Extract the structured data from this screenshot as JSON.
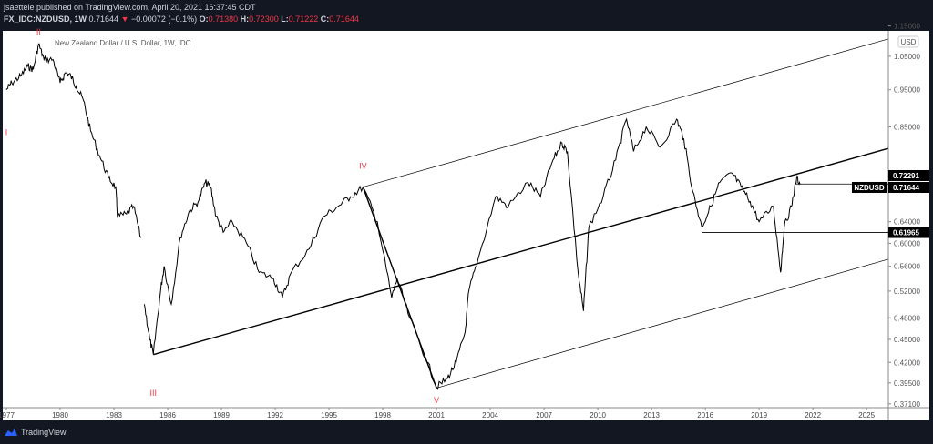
{
  "header": {
    "publisher": "jsaettele published on TradingView.com, April 20, 2021 16:37:45 CDT",
    "symbol": "FX_IDC:NZDUSD, 1W",
    "last": "0.71644",
    "change": "−0.00072 (−0.1%)",
    "open_label": "O:",
    "open": "0.71380",
    "high_label": "H:",
    "high": "0.72300",
    "low_label": "L:",
    "low": "0.71222",
    "close_label": "C:",
    "close": "0.71644"
  },
  "footer": {
    "brand": "TradingView",
    "icon": "tradingview-cloud-icon"
  },
  "chart_data": {
    "type": "line",
    "title": "New Zealand Dollar / U.S. Dollar, 1W, IDC",
    "currency_badge": "USD",
    "y_scale": "log",
    "ylim": [
      0.371,
      1.15
    ],
    "xlim": [
      1977,
      2026.3
    ],
    "x_ticks": [
      "1977",
      "1980",
      "1983",
      "1986",
      "1989",
      "1992",
      "1995",
      "1998",
      "2001",
      "2004",
      "2007",
      "2010",
      "2013",
      "2016",
      "2019",
      "2022",
      "2025"
    ],
    "y_ticks": [
      "1.15000",
      "1.05000",
      "0.95000",
      "0.85000",
      "0.64000",
      "0.60000",
      "0.56000",
      "0.52000",
      "0.48000",
      "0.45000",
      "0.42000",
      "0.39500",
      "0.37100"
    ],
    "colors": {
      "price": "#000000",
      "wave_label": "#f23645",
      "tag": "#000000"
    },
    "series": [
      {
        "values": [
          [
            1977.0,
            0.95
          ],
          [
            1977.3,
            0.97
          ],
          [
            1977.8,
            0.99
          ],
          [
            1978.2,
            1.02
          ],
          [
            1978.5,
            1.01
          ],
          [
            1978.8,
            1.09
          ],
          [
            1979.1,
            1.04
          ],
          [
            1979.6,
            1.04
          ],
          [
            1980.0,
            0.97
          ],
          [
            1980.3,
            1.0
          ],
          [
            1980.6,
            0.99
          ],
          [
            1980.9,
            0.96
          ],
          [
            1981.3,
            0.92
          ],
          [
            1981.7,
            0.84
          ],
          [
            1982.2,
            0.78
          ],
          [
            1982.7,
            0.73
          ],
          [
            1983.1,
            0.71
          ],
          [
            1983.2,
            0.65
          ],
          [
            1983.7,
            0.655
          ],
          [
            1984.1,
            0.67
          ],
          [
            1984.5,
            0.61
          ],
          [
            1984.7,
            0.5
          ],
          [
            1985.0,
            0.45
          ],
          [
            1985.2,
            0.43
          ],
          [
            1985.6,
            0.52
          ],
          [
            1985.8,
            0.56
          ],
          [
            1986.2,
            0.5
          ],
          [
            1986.7,
            0.61
          ],
          [
            1987.2,
            0.66
          ],
          [
            1987.7,
            0.68
          ],
          [
            1988.1,
            0.72
          ],
          [
            1988.4,
            0.71
          ],
          [
            1988.7,
            0.65
          ],
          [
            1989.1,
            0.62
          ],
          [
            1989.6,
            0.64
          ],
          [
            1990.4,
            0.6
          ],
          [
            1991.1,
            0.55
          ],
          [
            1991.9,
            0.54
          ],
          [
            1992.4,
            0.51
          ],
          [
            1992.9,
            0.55
          ],
          [
            1993.9,
            0.59
          ],
          [
            1994.7,
            0.65
          ],
          [
            1995.5,
            0.67
          ],
          [
            1996.2,
            0.69
          ],
          [
            1996.9,
            0.71
          ],
          [
            1997.7,
            0.64
          ],
          [
            1998.5,
            0.51
          ],
          [
            1998.8,
            0.54
          ],
          [
            1999.5,
            0.48
          ],
          [
            2000.5,
            0.42
          ],
          [
            2001.0,
            0.39
          ],
          [
            2001.6,
            0.4
          ],
          [
            2002.1,
            0.42
          ],
          [
            2002.6,
            0.46
          ],
          [
            2002.8,
            0.52
          ],
          [
            2003.3,
            0.57
          ],
          [
            2004.3,
            0.69
          ],
          [
            2005.0,
            0.67
          ],
          [
            2006.1,
            0.72
          ],
          [
            2006.8,
            0.69
          ],
          [
            2007.5,
            0.77
          ],
          [
            2008.0,
            0.81
          ],
          [
            2008.3,
            0.79
          ],
          [
            2008.9,
            0.55
          ],
          [
            2009.2,
            0.49
          ],
          [
            2009.5,
            0.63
          ],
          [
            2010.3,
            0.69
          ],
          [
            2011.0,
            0.77
          ],
          [
            2011.6,
            0.87
          ],
          [
            2012.0,
            0.79
          ],
          [
            2012.7,
            0.85
          ],
          [
            2013.5,
            0.8
          ],
          [
            2014.4,
            0.87
          ],
          [
            2014.8,
            0.82
          ],
          [
            2015.3,
            0.7
          ],
          [
            2015.8,
            0.63
          ],
          [
            2016.3,
            0.67
          ],
          [
            2016.8,
            0.72
          ],
          [
            2017.5,
            0.74
          ],
          [
            2018.0,
            0.71
          ],
          [
            2018.5,
            0.68
          ],
          [
            2019.0,
            0.64
          ],
          [
            2019.8,
            0.67
          ],
          [
            2020.2,
            0.55
          ],
          [
            2020.4,
            0.63
          ],
          [
            2020.8,
            0.67
          ],
          [
            2021.1,
            0.73
          ],
          [
            2021.3,
            0.716
          ]
        ]
      }
    ],
    "trendlines": [
      {
        "from": [
          1996.9,
          0.71
        ],
        "to": [
          2026.2,
          1.106
        ]
      },
      {
        "from": [
          1985.2,
          0.43
        ],
        "to": [
          2026.2,
          0.797
        ]
      },
      {
        "from": [
          1996.9,
          0.71
        ],
        "to": [
          2001.0,
          0.389
        ]
      },
      {
        "from": [
          2001.0,
          0.389
        ],
        "to": [
          2026.2,
          0.572
        ]
      }
    ],
    "horizontal_levels": [
      {
        "from": 2021.0,
        "value": 0.71644
      },
      {
        "from": 2015.8,
        "value": 0.61965
      }
    ],
    "price_tags": [
      {
        "label": "",
        "value": "0.72291"
      },
      {
        "label": "NZDUSD",
        "value": "0.71644"
      },
      {
        "label": "",
        "value": "0.61965"
      }
    ],
    "wave_labels": [
      {
        "text": "I",
        "x": 1977.0,
        "y": 0.83
      },
      {
        "text": "II",
        "x": 1978.8,
        "y": 1.15
      },
      {
        "text": "III",
        "x": 1985.2,
        "y": 0.38
      },
      {
        "text": "IV",
        "x": 1996.9,
        "y": 0.75
      },
      {
        "text": "V",
        "x": 2001.0,
        "y": 0.372
      }
    ]
  }
}
